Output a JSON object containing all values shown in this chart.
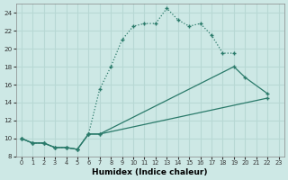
{
  "xlabel": "Humidex (Indice chaleur)",
  "xlim": [
    -0.5,
    23.5
  ],
  "ylim": [
    8,
    25
  ],
  "xticks": [
    0,
    1,
    2,
    3,
    4,
    5,
    6,
    7,
    8,
    9,
    10,
    11,
    12,
    13,
    14,
    15,
    16,
    17,
    18,
    19,
    20,
    21,
    22,
    23
  ],
  "yticks": [
    8,
    10,
    12,
    14,
    16,
    18,
    20,
    22,
    24
  ],
  "bg_color": "#cde8e5",
  "line_color": "#2a7a6a",
  "grid_color": "#b8d8d4",
  "curve1": {
    "x": [
      0,
      1,
      2,
      3,
      4,
      5,
      6,
      7,
      8,
      9,
      10,
      11,
      12,
      13,
      14,
      15,
      16,
      17,
      18,
      19
    ],
    "y": [
      10,
      9.5,
      9.5,
      9.0,
      9.0,
      8.8,
      10.5,
      15.5,
      18.0,
      21.0,
      22.5,
      22.8,
      22.8,
      24.5,
      23.2,
      22.5,
      22.8,
      21.5,
      19.5,
      19.5
    ],
    "linestyle": "dotted"
  },
  "curve2": {
    "x": [
      0,
      1,
      2,
      3,
      4,
      5,
      6,
      7,
      19,
      20,
      22
    ],
    "y": [
      10,
      9.5,
      9.5,
      9.0,
      9.0,
      8.8,
      10.5,
      10.5,
      18.0,
      16.8,
      15.0
    ],
    "linestyle": "solid"
  },
  "curve3": {
    "x": [
      0,
      1,
      2,
      3,
      4,
      5,
      6,
      7,
      22
    ],
    "y": [
      10,
      9.5,
      9.5,
      9.0,
      9.0,
      8.8,
      10.5,
      10.5,
      14.5
    ],
    "linestyle": "solid"
  }
}
